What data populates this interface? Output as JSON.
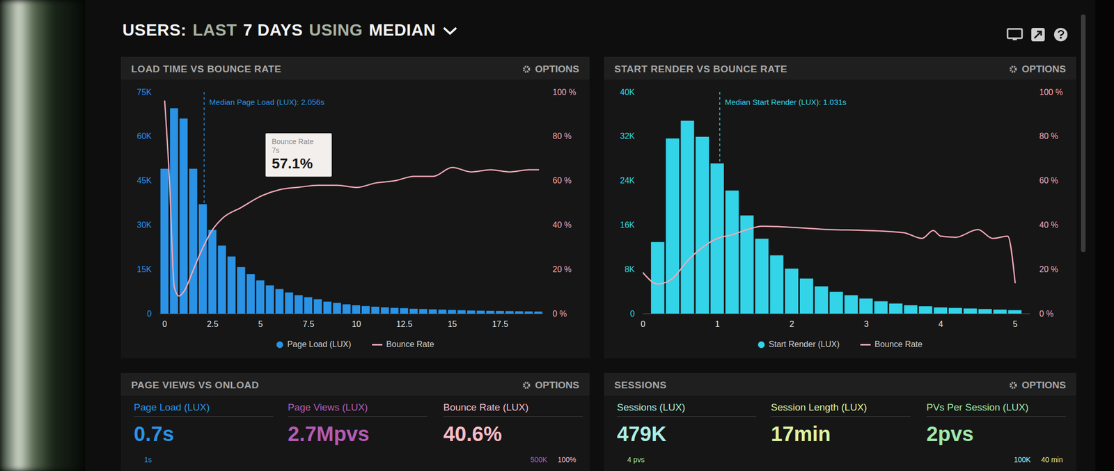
{
  "header": {
    "title": [
      "USERS:",
      "LAST",
      "7 DAYS",
      "USING",
      "MEDIAN"
    ]
  },
  "chart_data": [
    {
      "type": "histogram",
      "title": "LOAD TIME VS BOUNCE RATE",
      "menu": "OPTIONS",
      "bins": [
        -0.25,
        0.25,
        0.75,
        1.25,
        1.75,
        2.25,
        2.75,
        3.25,
        3.75,
        4.25,
        4.75,
        5.25,
        5.75,
        6.25,
        6.75,
        7.25,
        7.75,
        8.25,
        8.75,
        9.25,
        9.75,
        10.25,
        10.75,
        11.25,
        11.75,
        12.25,
        12.75,
        13.25,
        13.75,
        14.25,
        14.75,
        15.25,
        15.75,
        16.25,
        16.75,
        17.25,
        17.75,
        18.25,
        18.75,
        19.25,
        19.75
      ],
      "series": [
        {
          "name": "Page Load (LUX)",
          "type": "bar",
          "color": "#2a93e6",
          "values": [
            49000,
            69500,
            66000,
            49000,
            37000,
            28300,
            23000,
            19300,
            15700,
            13300,
            11200,
            9500,
            8300,
            7100,
            6200,
            5500,
            4800,
            4000,
            3600,
            3100,
            2800,
            2500,
            2300,
            2100,
            1900,
            1800,
            1600,
            1500,
            1400,
            1300,
            1200,
            1100,
            1000,
            950,
            900,
            850,
            800,
            750,
            700,
            650
          ]
        },
        {
          "name": "Bounce Rate",
          "type": "line",
          "axis": "y2",
          "color": "#f4a9b8",
          "x": [
            0,
            0.25,
            0.5,
            0.75,
            1,
            1.5,
            2,
            2.5,
            3,
            4,
            5,
            6,
            7,
            8,
            9,
            10,
            11,
            12,
            13,
            14,
            15,
            16,
            17,
            18,
            19,
            19.5
          ],
          "values": [
            96,
            60,
            12,
            8,
            10,
            20,
            30,
            38,
            43,
            48,
            53,
            56,
            57.1,
            58,
            58,
            57,
            59,
            60,
            62,
            62,
            66,
            64,
            65,
            64,
            65,
            65
          ]
        }
      ],
      "xlim": [
        -0.25,
        19.75
      ],
      "xticks": [
        0,
        2.5,
        5,
        7.5,
        10,
        12.5,
        15,
        17.5
      ],
      "ylim": [
        0,
        75000
      ],
      "yticks": [
        0,
        {
          "value": 15000,
          "label": "15K"
        },
        {
          "value": 30000,
          "label": "30K"
        },
        {
          "value": 45000,
          "label": "45K"
        },
        {
          "value": 60000,
          "label": "60K"
        },
        {
          "value": 75000,
          "label": "75K"
        }
      ],
      "y2lim": [
        0,
        100
      ],
      "y2ticks": [
        {
          "value": 0,
          "label": "0 %"
        },
        {
          "value": 20,
          "label": "20 %"
        },
        {
          "value": 40,
          "label": "40 %"
        },
        {
          "value": 60,
          "label": "60 %"
        },
        {
          "value": 80,
          "label": "80 %"
        },
        {
          "value": 100,
          "label": "100 %"
        }
      ],
      "median": {
        "value": 2.056,
        "label": "Median Page Load (LUX): 2.056s"
      },
      "tooltip": {
        "title": "Bounce Rate",
        "x": 7,
        "x_label": "7s",
        "value": 57.1,
        "label": "57.1%"
      },
      "grid": false,
      "legend": "bottom"
    },
    {
      "type": "histogram",
      "title": "START RENDER VS BOUNCE RATE",
      "menu": "OPTIONS",
      "bins": [
        0.1,
        0.3,
        0.5,
        0.7,
        0.9,
        1.1,
        1.3,
        1.5,
        1.7,
        1.9,
        2.1,
        2.3,
        2.5,
        2.7,
        2.9,
        3.1,
        3.3,
        3.5,
        3.7,
        3.9,
        4.1,
        4.3,
        4.5,
        4.7,
        4.9,
        5.1
      ],
      "series": [
        {
          "name": "Start Render (LUX)",
          "type": "bar",
          "color": "#33d3e8",
          "values": [
            12900,
            31600,
            34800,
            31900,
            27100,
            22200,
            17700,
            13500,
            10500,
            8100,
            6300,
            4900,
            3900,
            3300,
            2700,
            2200,
            1800,
            1500,
            1300,
            1100,
            1000,
            900,
            800,
            700,
            600
          ]
        },
        {
          "name": "Bounce Rate",
          "type": "line",
          "axis": "y2",
          "color": "#f4a9b8",
          "x": [
            0,
            0.2,
            0.4,
            0.6,
            0.8,
            1,
            1.2,
            1.4,
            1.6,
            2,
            2.5,
            3,
            3.5,
            3.75,
            3.9,
            4,
            4.2,
            4.5,
            4.7,
            4.9,
            5
          ],
          "values": [
            18.5,
            13.4,
            16,
            24,
            30,
            34,
            35.7,
            38,
            39.5,
            39,
            38,
            37.6,
            36.6,
            34,
            37.6,
            35,
            34.5,
            38,
            34,
            35,
            14
          ]
        }
      ],
      "xlim": [
        0,
        5.2
      ],
      "xticks": [
        0,
        1,
        2,
        3,
        4,
        5
      ],
      "ylim": [
        0,
        40000
      ],
      "yticks": [
        0,
        {
          "value": 8000,
          "label": "8K"
        },
        {
          "value": 16000,
          "label": "16K"
        },
        {
          "value": 24000,
          "label": "24K"
        },
        {
          "value": 32000,
          "label": "32K"
        },
        {
          "value": 40000,
          "label": "40K"
        }
      ],
      "y2lim": [
        0,
        100
      ],
      "y2ticks": [
        {
          "value": 0,
          "label": "0 %"
        },
        {
          "value": 20,
          "label": "20 %"
        },
        {
          "value": 40,
          "label": "40 %"
        },
        {
          "value": 60,
          "label": "60 %"
        },
        {
          "value": 80,
          "label": "80 %"
        },
        {
          "value": 100,
          "label": "100 %"
        }
      ],
      "median": {
        "value": 1.031,
        "label": "Median Start Render (LUX): 1.031s"
      },
      "grid": false,
      "legend": "bottom"
    }
  ],
  "panels": [
    {
      "title": "PAGE VIEWS VS ONLOAD",
      "menu": "OPTIONS",
      "metrics": [
        {
          "label": "Page Load (LUX)",
          "value": "0.7s",
          "color": "#2a93e6"
        },
        {
          "label": "Page Views (LUX)",
          "value": "2.7Mpvs",
          "color": "#b45cb4"
        },
        {
          "label": "Bounce Rate (LUX)",
          "value": "40.6%",
          "color": "#f7bcc8"
        }
      ],
      "notes_left": [
        {
          "text": "1s",
          "color": "#2a93e6"
        }
      ],
      "notes_right": [
        {
          "text": "500K",
          "color": "#b45cb4"
        },
        {
          "text": "100%",
          "color": "#f7bcc8"
        }
      ]
    },
    {
      "title": "SESSIONS",
      "menu": "OPTIONS",
      "metrics": [
        {
          "label": "Sessions (LUX)",
          "value": "479K",
          "color": "#a9f0e6"
        },
        {
          "label": "Session Length (LUX)",
          "value": "17min",
          "color": "#dcf2a4"
        },
        {
          "label": "PVs Per Session (LUX)",
          "value": "2pvs",
          "color": "#9ee9ab"
        }
      ],
      "notes_left": [
        {
          "text": "4 pvs",
          "color": "#9ee9ab"
        }
      ],
      "notes_right": [
        {
          "text": "100K",
          "color": "#a9f0e6"
        },
        {
          "text": "40 min",
          "color": "#dcf2a4"
        }
      ]
    }
  ]
}
